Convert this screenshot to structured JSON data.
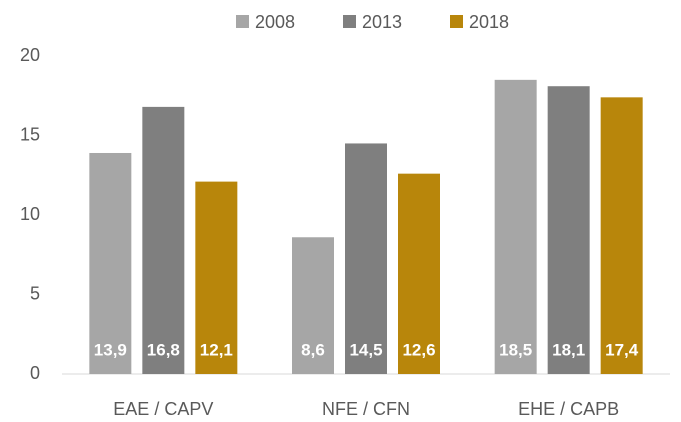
{
  "chart_data": {
    "type": "bar",
    "categories": [
      "EAE / CAPV",
      "NFE / CFN",
      "EHE / CAPB"
    ],
    "series": [
      {
        "name": "2008",
        "color": "#a6a6a6",
        "values": [
          13.9,
          8.6,
          18.5
        ],
        "value_labels": [
          "13,9",
          "8,6",
          "18,5"
        ]
      },
      {
        "name": "2013",
        "color": "#7f7f7f",
        "values": [
          16.8,
          14.5,
          18.1
        ],
        "value_labels": [
          "16,8",
          "14,5",
          "18,1"
        ]
      },
      {
        "name": "2018",
        "color": "#b8860b",
        "values": [
          12.1,
          12.6,
          17.4
        ],
        "value_labels": [
          "12,1",
          "12,6",
          "17,4"
        ]
      }
    ],
    "ylim": [
      0,
      20
    ],
    "yticks": [
      0,
      5,
      10,
      15,
      20
    ],
    "grid": false,
    "legend": "top"
  }
}
